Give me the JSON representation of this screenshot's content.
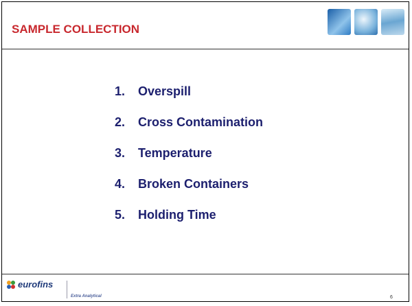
{
  "header": {
    "title": "SAMPLE COLLECTION"
  },
  "list": {
    "items": [
      {
        "number": "1.",
        "text": "Overspill"
      },
      {
        "number": "2.",
        "text": "Cross Contamination"
      },
      {
        "number": "3.",
        "text": "Temperature"
      },
      {
        "number": "4.",
        "text": "Broken Containers"
      },
      {
        "number": "5.",
        "text": "Holding Time"
      }
    ]
  },
  "footer": {
    "logo": "eurofins",
    "tagline": "Extra Analytical",
    "page_number": "6"
  }
}
